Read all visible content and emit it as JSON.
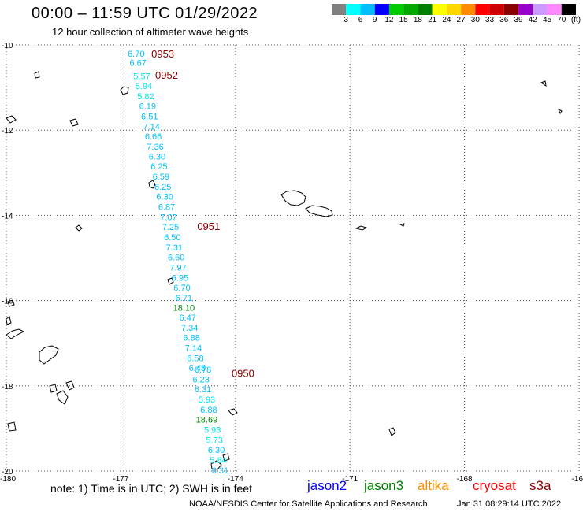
{
  "header": {
    "title": "00:00 – 11:59 UTC 01/29/2022",
    "subtitle": "12 hour collection of altimeter wave heights"
  },
  "legend": {
    "colors": [
      "#808080",
      "#00ffff",
      "#00bfff",
      "#0000ff",
      "#00cc00",
      "#00aa00",
      "#008000",
      "#ffff00",
      "#ffd700",
      "#ff8c00",
      "#ff0000",
      "#cc0000",
      "#8b0000",
      "#9900cc",
      "#cc99ff",
      "#ff88ff",
      "#000000"
    ],
    "labels": [
      "3",
      "6",
      "9",
      "12",
      "15",
      "18",
      "21",
      "24",
      "27",
      "30",
      "33",
      "36",
      "39",
      "42",
      "45",
      "70",
      "(ft)"
    ]
  },
  "axes": {
    "lat_labels": [
      "-10",
      "-12",
      "-14",
      "-16",
      "-18",
      "-20"
    ],
    "lon_labels": [
      "-180",
      "-177",
      "-174",
      "-171",
      "-168",
      "-16"
    ]
  },
  "passes": [
    {
      "label": "0953",
      "lat": -10.2,
      "lon": -176.2
    },
    {
      "label": "0952",
      "lat": -10.7,
      "lon": -176.1
    },
    {
      "label": "0951",
      "lat": -14.25,
      "lon": -175.0
    },
    {
      "label": "0950",
      "lat": -17.7,
      "lon": -174.1
    }
  ],
  "observations": [
    {
      "value": "6.70",
      "lat": -10.2,
      "lon": -176.6,
      "color": "#00bfff"
    },
    {
      "value": "6.67",
      "lat": -10.42,
      "lon": -176.55,
      "color": "#00bfff"
    },
    {
      "value": "5.57",
      "lat": -10.73,
      "lon": -176.45,
      "color": "#00e5ee"
    },
    {
      "value": "5.94",
      "lat": -10.96,
      "lon": -176.4,
      "color": "#00e5ee"
    },
    {
      "value": "5.82",
      "lat": -11.2,
      "lon": -176.35,
      "color": "#00e5ee"
    },
    {
      "value": "6.19",
      "lat": -11.43,
      "lon": -176.3,
      "color": "#00bfff"
    },
    {
      "value": "6.51",
      "lat": -11.67,
      "lon": -176.25,
      "color": "#00bfff"
    },
    {
      "value": "7.14",
      "lat": -11.91,
      "lon": -176.2,
      "color": "#00bfff"
    },
    {
      "value": "6.66",
      "lat": -12.14,
      "lon": -176.15,
      "color": "#00bfff"
    },
    {
      "value": "7.36",
      "lat": -12.38,
      "lon": -176.1,
      "color": "#00bfff"
    },
    {
      "value": "6.30",
      "lat": -12.62,
      "lon": -176.05,
      "color": "#00bfff"
    },
    {
      "value": "6.25",
      "lat": -12.85,
      "lon": -176.0,
      "color": "#00bfff"
    },
    {
      "value": "6.59",
      "lat": -13.09,
      "lon": -175.95,
      "color": "#00bfff"
    },
    {
      "value": "6.25",
      "lat": -13.33,
      "lon": -175.9,
      "color": "#00bfff"
    },
    {
      "value": "6.30",
      "lat": -13.56,
      "lon": -175.85,
      "color": "#00bfff"
    },
    {
      "value": "6.87",
      "lat": -13.8,
      "lon": -175.8,
      "color": "#00bfff"
    },
    {
      "value": "7.07",
      "lat": -14.04,
      "lon": -175.75,
      "color": "#00bfff"
    },
    {
      "value": "7.25",
      "lat": -14.27,
      "lon": -175.7,
      "color": "#00bfff"
    },
    {
      "value": "6.50",
      "lat": -14.51,
      "lon": -175.65,
      "color": "#00bfff"
    },
    {
      "value": "7.31",
      "lat": -14.75,
      "lon": -175.6,
      "color": "#00bfff"
    },
    {
      "value": "6.60",
      "lat": -14.98,
      "lon": -175.55,
      "color": "#00bfff"
    },
    {
      "value": "7.97",
      "lat": -15.22,
      "lon": -175.5,
      "color": "#00bfff"
    },
    {
      "value": "6.95",
      "lat": -15.46,
      "lon": -175.45,
      "color": "#00bfff"
    },
    {
      "value": "6.70",
      "lat": -15.69,
      "lon": -175.4,
      "color": "#00bfff"
    },
    {
      "value": "6.71",
      "lat": -15.93,
      "lon": -175.35,
      "color": "#00bfff"
    },
    {
      "value": "18.10",
      "lat": -16.16,
      "lon": -175.35,
      "color": "#008000"
    },
    {
      "value": "6.47",
      "lat": -16.4,
      "lon": -175.25,
      "color": "#00bfff"
    },
    {
      "value": "7.34",
      "lat": -16.64,
      "lon": -175.2,
      "color": "#00bfff"
    },
    {
      "value": "6.88",
      "lat": -16.87,
      "lon": -175.15,
      "color": "#00bfff"
    },
    {
      "value": "7.14",
      "lat": -17.11,
      "lon": -175.1,
      "color": "#00bfff"
    },
    {
      "value": "6.58",
      "lat": -17.35,
      "lon": -175.05,
      "color": "#00bfff"
    },
    {
      "value": "6.48",
      "lat": -17.58,
      "lon": -175.0,
      "color": "#00bfff"
    },
    {
      "value": "6.78",
      "lat": -17.62,
      "lon": -174.85,
      "color": "#00bfff"
    },
    {
      "value": "6.23",
      "lat": -17.85,
      "lon": -174.9,
      "color": "#00bfff"
    },
    {
      "value": "6.31",
      "lat": -18.08,
      "lon": -174.85,
      "color": "#00bfff"
    },
    {
      "value": "5.93",
      "lat": -18.32,
      "lon": -174.75,
      "color": "#00e5ee"
    },
    {
      "value": "6.88",
      "lat": -18.56,
      "lon": -174.7,
      "color": "#00bfff"
    },
    {
      "value": "18.69",
      "lat": -18.79,
      "lon": -174.75,
      "color": "#008000"
    },
    {
      "value": "5.93",
      "lat": -19.03,
      "lon": -174.6,
      "color": "#00e5ee"
    },
    {
      "value": "5.73",
      "lat": -19.27,
      "lon": -174.55,
      "color": "#00e5ee"
    },
    {
      "value": "6.30",
      "lat": -19.5,
      "lon": -174.5,
      "color": "#00bfff"
    },
    {
      "value": "5.84",
      "lat": -19.74,
      "lon": -174.45,
      "color": "#00e5ee"
    },
    {
      "value": "6.31",
      "lat": -19.98,
      "lon": -174.4,
      "color": "#00bfff"
    }
  ],
  "footer": {
    "note": "note: 1) Time is in UTC; 2) SWH is in feet",
    "satellites": [
      {
        "name": "jason2",
        "color": "#0000ff"
      },
      {
        "name": "jason3",
        "color": "#008000"
      },
      {
        "name": "altika",
        "color": "#ff8c00"
      },
      {
        "name": "cryosat",
        "color": "#ff0000"
      },
      {
        "name": "s3a",
        "color": "#8b0000"
      }
    ],
    "credit": "NOAA/NESDIS Center for Satellite Applications and Research",
    "timestamp": "Jan 31 08:29:14 UTC 2022"
  }
}
